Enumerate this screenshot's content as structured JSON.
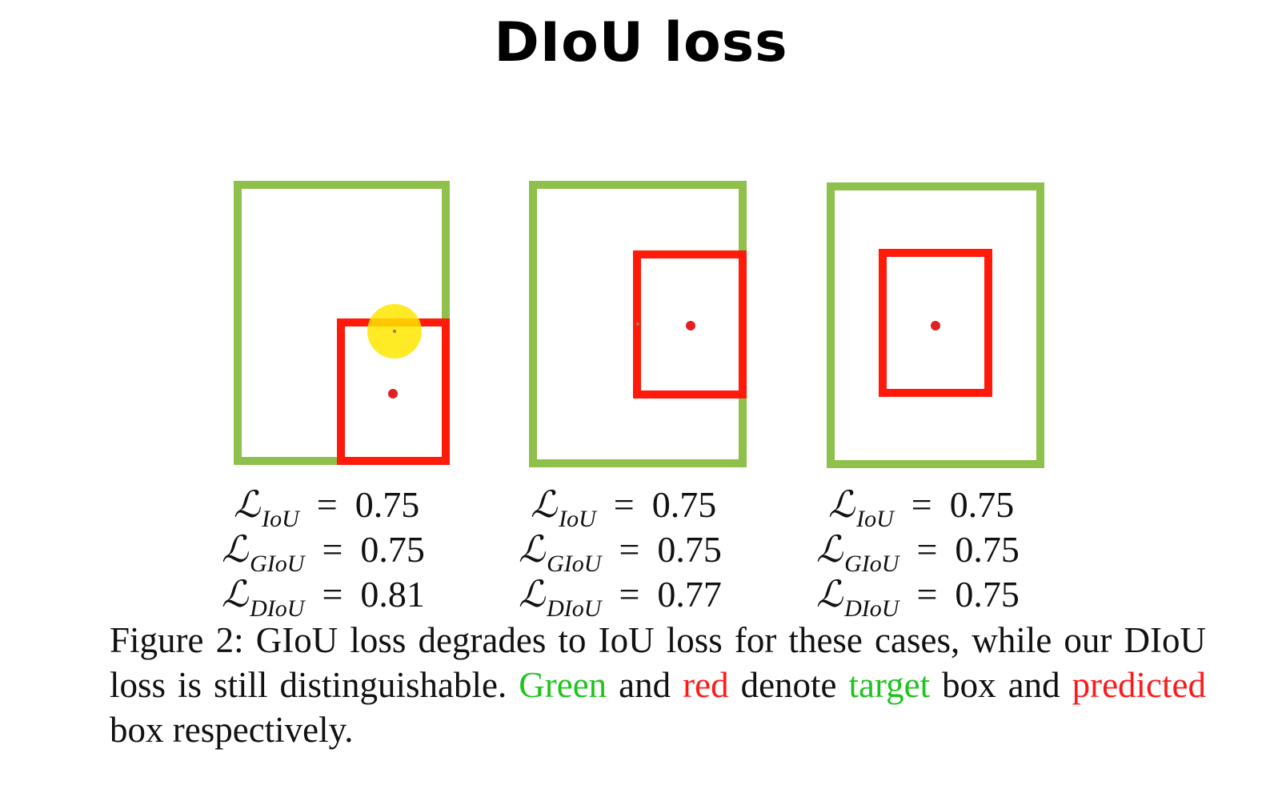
{
  "title": "DIoU loss",
  "colors": {
    "target": "#8fc04b",
    "predicted": "#ff1a0a",
    "center_dot": "#e02020",
    "cursor_highlight": "#ffe600",
    "caption_green": "#1fc41f",
    "caption_red": "#ff1a1a"
  },
  "panels": [
    {
      "losses": [
        {
          "symbol": "ℒ",
          "sub": "IoU",
          "op": "=",
          "value": "0.75"
        },
        {
          "symbol": "ℒ",
          "sub": "GIoU",
          "op": "=",
          "value": "0.75"
        },
        {
          "symbol": "ℒ",
          "sub": "DIoU",
          "op": "=",
          "value": "0.81"
        }
      ]
    },
    {
      "losses": [
        {
          "symbol": "ℒ",
          "sub": "IoU",
          "op": "=",
          "value": "0.75"
        },
        {
          "symbol": "ℒ",
          "sub": "GIoU",
          "op": "=",
          "value": "0.75"
        },
        {
          "symbol": "ℒ",
          "sub": "DIoU",
          "op": "=",
          "value": "0.77"
        }
      ]
    },
    {
      "losses": [
        {
          "symbol": "ℒ",
          "sub": "IoU",
          "op": "=",
          "value": "0.75"
        },
        {
          "symbol": "ℒ",
          "sub": "GIoU",
          "op": "=",
          "value": "0.75"
        },
        {
          "symbol": "ℒ",
          "sub": "DIoU",
          "op": "=",
          "value": "0.75"
        }
      ]
    }
  ],
  "caption": {
    "part1": "Figure 2: GIoU loss degrades to IoU loss for these cases, while our DIoU loss is still distinguishable.",
    "green1": "Green",
    "and": "and",
    "red1": "red",
    "denote": "denote",
    "green2": "target",
    "part2": "box and",
    "red2": "predicted",
    "part3": "box respectively."
  }
}
